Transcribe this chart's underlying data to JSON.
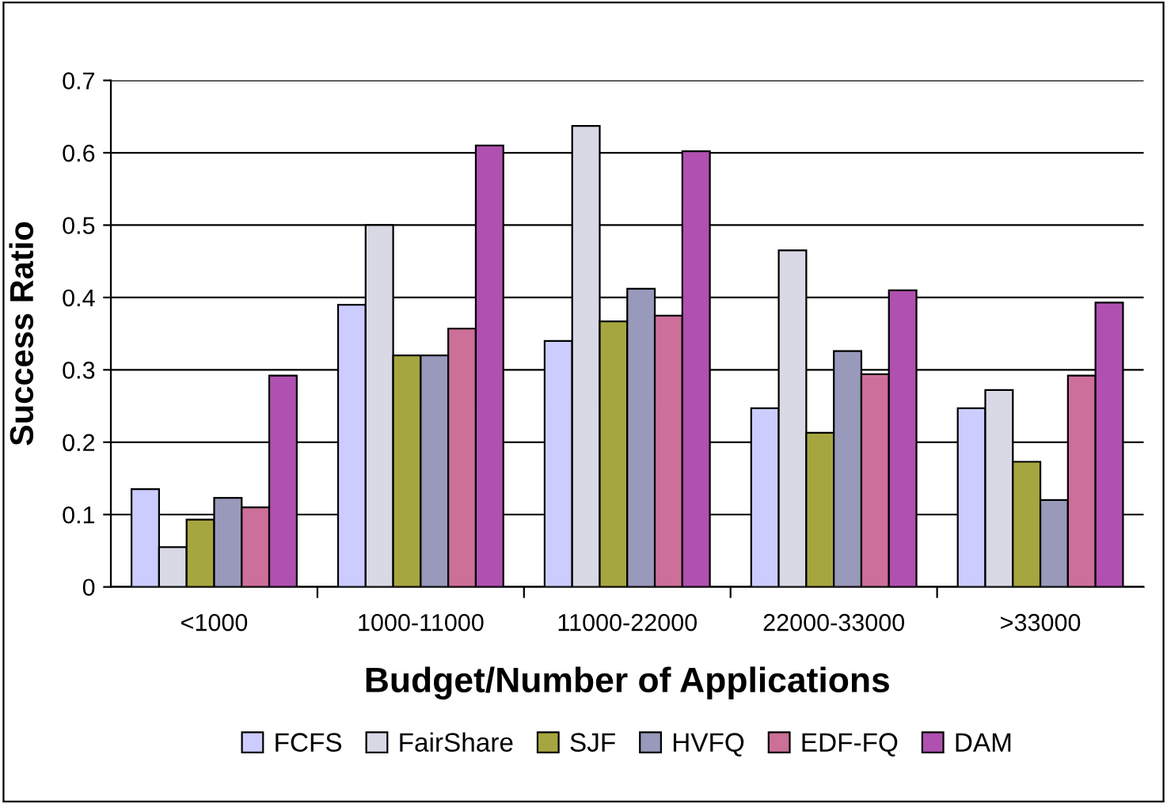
{
  "chart_data": {
    "type": "bar",
    "xlabel": "Budget/Number of Applications",
    "ylabel": "Success Ratio",
    "categories": [
      "<1000",
      "1000-11000",
      "11000-22000",
      "22000-33000",
      ">33000"
    ],
    "series": [
      {
        "name": "FCFS",
        "color": "#ccccff",
        "values": [
          0.135,
          0.39,
          0.34,
          0.247,
          0.247
        ]
      },
      {
        "name": "FairShare",
        "color": "#d9d9e6",
        "values": [
          0.055,
          0.5,
          0.637,
          0.465,
          0.272
        ]
      },
      {
        "name": "SJF",
        "color": "#a6a640",
        "values": [
          0.093,
          0.32,
          0.367,
          0.213,
          0.173
        ]
      },
      {
        "name": "HVFQ",
        "color": "#9999bb",
        "values": [
          0.123,
          0.32,
          0.412,
          0.326,
          0.12
        ]
      },
      {
        "name": "EDF-FQ",
        "color": "#cc6f99",
        "values": [
          0.11,
          0.357,
          0.375,
          0.294,
          0.292
        ]
      },
      {
        "name": "DAM",
        "color": "#b050b0",
        "values": [
          0.292,
          0.61,
          0.602,
          0.41,
          0.393
        ]
      }
    ],
    "ylim": [
      0,
      0.7
    ],
    "yticks": [
      0,
      0.1,
      0.2,
      0.3,
      0.4,
      0.5,
      0.6,
      0.7
    ],
    "grid": "y",
    "legend": "bottom"
  }
}
